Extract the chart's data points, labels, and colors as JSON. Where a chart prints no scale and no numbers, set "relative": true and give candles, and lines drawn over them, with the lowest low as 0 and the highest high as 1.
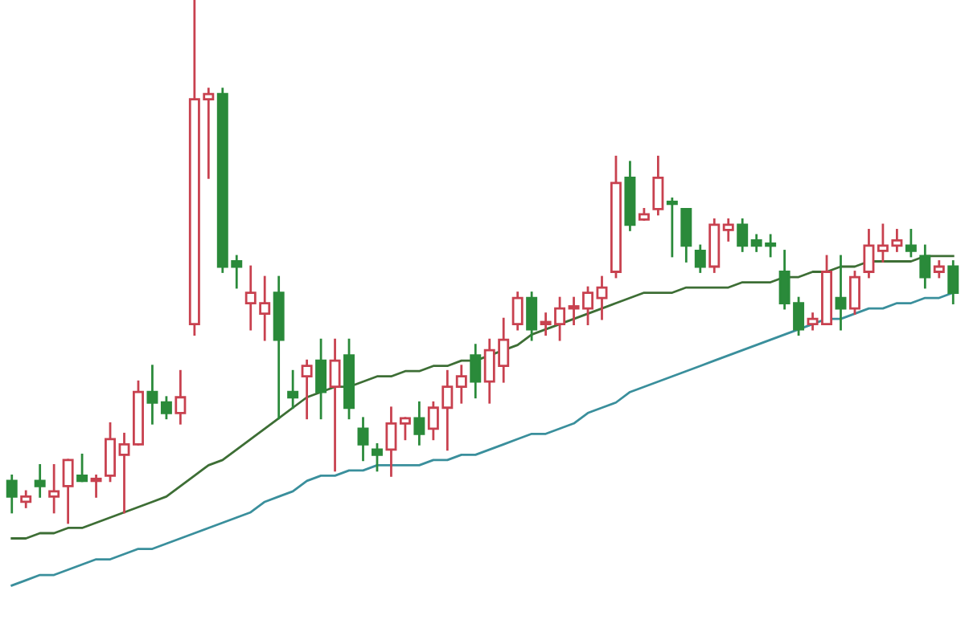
{
  "chart_data": {
    "type": "candlestick",
    "relative": true,
    "categories": [
      null,
      null,
      null,
      null,
      null,
      null,
      null,
      null,
      null,
      null,
      null,
      null,
      null,
      null,
      null,
      null,
      null,
      null,
      null,
      null,
      null,
      null,
      null,
      null,
      null,
      null,
      null,
      null,
      null,
      null,
      null,
      null,
      null,
      null,
      null,
      null,
      null,
      null,
      null,
      null,
      null,
      null,
      null,
      null,
      null,
      null,
      null,
      null,
      null,
      null,
      null,
      null,
      null,
      null,
      null,
      null,
      null,
      null,
      null,
      null,
      null,
      null,
      null,
      null,
      null,
      null,
      null,
      null
    ],
    "ohlc": [
      [
        0.08,
        0.09,
        0.02,
        0.05
      ],
      [
        0.04,
        0.06,
        0.03,
        0.05
      ],
      [
        0.08,
        0.11,
        0.05,
        0.07
      ],
      [
        0.05,
        0.11,
        0.02,
        0.06
      ],
      [
        0.07,
        0.12,
        0,
        0.12
      ],
      [
        0.09,
        0.13,
        0.08,
        0.08
      ],
      [
        0.08,
        0.09,
        0.05,
        0.08
      ],
      [
        0.09,
        0.19,
        0.08,
        0.16
      ],
      [
        0.13,
        0.17,
        0.02,
        0.15
      ],
      [
        0.15,
        0.27,
        0.15,
        0.25
      ],
      [
        0.25,
        0.3,
        0.19,
        0.23
      ],
      [
        0.23,
        0.24,
        0.2,
        0.21
      ],
      [
        0.21,
        0.29,
        0.19,
        0.24
      ],
      [
        0.38,
        1,
        0.36,
        0.81
      ],
      [
        0.81,
        0.83,
        0.66,
        0.82
      ],
      [
        0.82,
        0.83,
        0.48,
        0.49
      ],
      [
        0.5,
        0.51,
        0.45,
        0.49
      ],
      [
        0.42,
        0.49,
        0.37,
        0.44
      ],
      [
        0.4,
        0.47,
        0.35,
        0.42
      ],
      [
        0.44,
        0.47,
        0.2,
        0.35
      ],
      [
        0.25,
        0.29,
        0.22,
        0.24
      ],
      [
        0.28,
        0.31,
        0.2,
        0.3
      ],
      [
        0.31,
        0.35,
        0.2,
        0.25
      ],
      [
        0.26,
        0.35,
        0.1,
        0.31
      ],
      [
        0.32,
        0.35,
        0.2,
        0.22
      ],
      [
        0.18,
        0.2,
        0.12,
        0.15
      ],
      [
        0.14,
        0.15,
        0.1,
        0.13
      ],
      [
        0.14,
        0.22,
        0.09,
        0.19
      ],
      [
        0.19,
        0.2,
        0.16,
        0.2
      ],
      [
        0.2,
        0.23,
        0.15,
        0.17
      ],
      [
        0.18,
        0.23,
        0.16,
        0.22
      ],
      [
        0.22,
        0.29,
        0.14,
        0.26
      ],
      [
        0.26,
        0.3,
        0.23,
        0.28
      ],
      [
        0.32,
        0.34,
        0.24,
        0.27
      ],
      [
        0.27,
        0.35,
        0.23,
        0.33
      ],
      [
        0.3,
        0.39,
        0.27,
        0.35
      ],
      [
        0.38,
        0.44,
        0.37,
        0.43
      ],
      [
        0.43,
        0.44,
        0.35,
        0.37
      ],
      [
        0.38,
        0.4,
        0.36,
        0.38
      ],
      [
        0.38,
        0.43,
        0.35,
        0.41
      ],
      [
        0.41,
        0.43,
        0.38,
        0.41
      ],
      [
        0.41,
        0.45,
        0.38,
        0.44
      ],
      [
        0.43,
        0.47,
        0.39,
        0.45
      ],
      [
        0.48,
        0.7,
        0.47,
        0.65
      ],
      [
        0.66,
        0.69,
        0.56,
        0.57
      ],
      [
        0.58,
        0.6,
        0.58,
        0.59
      ],
      [
        0.6,
        0.7,
        0.59,
        0.66
      ],
      [
        0.61,
        0.62,
        0.51,
        0.61
      ],
      [
        0.6,
        0.6,
        0.5,
        0.53
      ],
      [
        0.52,
        0.53,
        0.48,
        0.49
      ],
      [
        0.49,
        0.58,
        0.48,
        0.57
      ],
      [
        0.56,
        0.58,
        0.54,
        0.57
      ],
      [
        0.57,
        0.58,
        0.52,
        0.53
      ],
      [
        0.54,
        0.55,
        0.52,
        0.53
      ],
      [
        0.53,
        0.55,
        0.51,
        0.53
      ],
      [
        0.48,
        0.52,
        0.41,
        0.42
      ],
      [
        0.42,
        0.43,
        0.36,
        0.37
      ],
      [
        0.38,
        0.4,
        0.37,
        0.39
      ],
      [
        0.38,
        0.51,
        0.38,
        0.48
      ],
      [
        0.43,
        0.51,
        0.37,
        0.41
      ],
      [
        0.41,
        0.48,
        0.4,
        0.47
      ],
      [
        0.48,
        0.56,
        0.47,
        0.53
      ],
      [
        0.52,
        0.57,
        0.5,
        0.53
      ],
      [
        0.53,
        0.56,
        0.52,
        0.54
      ],
      [
        0.53,
        0.56,
        0.51,
        0.52
      ],
      [
        0.51,
        0.53,
        0.45,
        0.47
      ],
      [
        0.48,
        0.5,
        0.47,
        0.49
      ],
      [
        0.49,
        0.5,
        0.42,
        0.44
      ]
    ],
    "colors": [
      "#2a8a3a",
      "#c8414f",
      "#2a8a3a",
      "#c8414f",
      "#c8414f",
      "#2a8a3a",
      "#c8414f",
      "#c8414f",
      "#c8414f",
      "#c8414f",
      "#2a8a3a",
      "#2a8a3a",
      "#c8414f",
      "#c8414f",
      "#c8414f",
      "#2a8a3a",
      "#2a8a3a",
      "#c8414f",
      "#c8414f",
      "#2a8a3a",
      "#2a8a3a",
      "#c8414f",
      "#2a8a3a",
      "#c8414f",
      "#2a8a3a",
      "#2a8a3a",
      "#2a8a3a",
      "#c8414f",
      "#c8414f",
      "#2a8a3a",
      "#c8414f",
      "#c8414f",
      "#c8414f",
      "#2a8a3a",
      "#c8414f",
      "#c8414f",
      "#c8414f",
      "#2a8a3a",
      "#c8414f",
      "#c8414f",
      "#c8414f",
      "#c8414f",
      "#c8414f",
      "#c8414f",
      "#2a8a3a",
      "#c8414f",
      "#c8414f",
      "#2a8a3a",
      "#2a8a3a",
      "#2a8a3a",
      "#c8414f",
      "#c8414f",
      "#2a8a3a",
      "#2a8a3a",
      "#2a8a3a",
      "#2a8a3a",
      "#2a8a3a",
      "#c8414f",
      "#c8414f",
      "#2a8a3a",
      "#c8414f",
      "#c8414f",
      "#c8414f",
      "#c8414f",
      "#2a8a3a",
      "#2a8a3a",
      "#c8414f",
      "#2a8a3a"
    ],
    "series": [
      {
        "type": "line",
        "color": "#3a8f9c",
        "values": [
          -0.12,
          -0.11,
          -0.1,
          -0.1,
          -0.09,
          -0.08,
          -0.07,
          -0.07,
          -0.06,
          -0.05,
          -0.05,
          -0.04,
          -0.03,
          -0.02,
          -0.01,
          0,
          0.01,
          0.02,
          0.04,
          0.05,
          0.06,
          0.08,
          0.09,
          0.09,
          0.1,
          0.1,
          0.11,
          0.11,
          0.11,
          0.11,
          0.12,
          0.12,
          0.13,
          0.13,
          0.14,
          0.15,
          0.16,
          0.17,
          0.17,
          0.18,
          0.19,
          0.21,
          0.22,
          0.23,
          0.25,
          0.26,
          0.27,
          0.28,
          0.29,
          0.3,
          0.31,
          0.32,
          0.33,
          0.34,
          0.35,
          0.36,
          0.37,
          0.38,
          0.39,
          0.39,
          0.4,
          0.41,
          0.41,
          0.42,
          0.42,
          0.43,
          0.43,
          0.44
        ]
      },
      {
        "type": "line",
        "color": "#3d6e35",
        "values": [
          -0.03,
          -0.03,
          -0.02,
          -0.02,
          -0.01,
          -0.01,
          0,
          0.01,
          0.02,
          0.03,
          0.04,
          0.05,
          0.07,
          0.09,
          0.11,
          0.12,
          0.14,
          0.16,
          0.18,
          0.2,
          0.22,
          0.24,
          0.25,
          0.26,
          0.26,
          0.27,
          0.28,
          0.28,
          0.29,
          0.29,
          0.3,
          0.3,
          0.31,
          0.31,
          0.32,
          0.33,
          0.34,
          0.36,
          0.37,
          0.38,
          0.39,
          0.4,
          0.41,
          0.42,
          0.43,
          0.44,
          0.44,
          0.44,
          0.45,
          0.45,
          0.45,
          0.45,
          0.46,
          0.46,
          0.46,
          0.47,
          0.47,
          0.48,
          0.48,
          0.49,
          0.49,
          0.5,
          0.5,
          0.5,
          0.5,
          0.51,
          0.51,
          0.51
        ]
      }
    ]
  }
}
